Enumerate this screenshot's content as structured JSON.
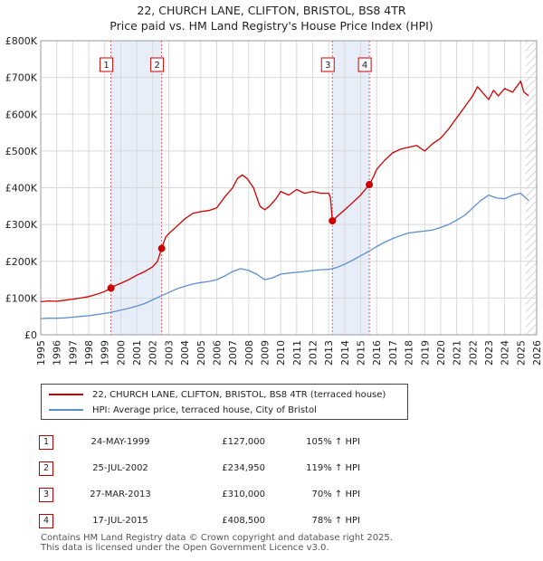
{
  "title_line1": "22, CHURCH LANE, CLIFTON, BRISTOL, BS8 4TR",
  "title_line2": "Price paid vs. HM Land Registry's House Price Index (HPI)",
  "colors": {
    "property": "#cc0000",
    "hpi": "#5b8fd0",
    "shade": "#e8eef9",
    "grid": "#d8d8d8",
    "marker_line": "#e06060"
  },
  "chart_data": {
    "type": "line",
    "title": "22, CHURCH LANE, CLIFTON, BRISTOL, BS8 4TR",
    "subtitle": "Price paid vs. HM Land Registry's House Price Index (HPI)",
    "xlim": [
      1995,
      2026
    ],
    "ylim": [
      0,
      800000
    ],
    "xticks": [
      1995,
      1996,
      1997,
      1998,
      1999,
      2000,
      2001,
      2002,
      2003,
      2004,
      2005,
      2006,
      2007,
      2008,
      2009,
      2010,
      2011,
      2012,
      2013,
      2014,
      2015,
      2016,
      2017,
      2018,
      2019,
      2020,
      2021,
      2022,
      2023,
      2024,
      2025,
      2026
    ],
    "yticks": [
      {
        "value": 0,
        "label": "£0"
      },
      {
        "value": 100000,
        "label": "£100K"
      },
      {
        "value": 200000,
        "label": "£200K"
      },
      {
        "value": 300000,
        "label": "£300K"
      },
      {
        "value": 400000,
        "label": "£400K"
      },
      {
        "value": 500000,
        "label": "£500K"
      },
      {
        "value": 600000,
        "label": "£600K"
      },
      {
        "value": 700000,
        "label": "£700K"
      },
      {
        "value": 800000,
        "label": "£800K"
      }
    ],
    "shaded_ranges": [
      [
        1999.4,
        2002.56
      ],
      [
        2013.23,
        2015.54
      ]
    ],
    "future_start": 2025.3,
    "sales": [
      {
        "label": "1",
        "x": 1999.39,
        "y": 127000
      },
      {
        "label": "2",
        "x": 2002.56,
        "y": 234950
      },
      {
        "label": "3",
        "x": 2013.23,
        "y": 310000
      },
      {
        "label": "4",
        "x": 2015.54,
        "y": 408500
      }
    ],
    "series": [
      {
        "name": "22, CHURCH LANE, CLIFTON, BRISTOL, BS8 4TR (terraced house)",
        "x": [
          1995,
          1995.5,
          1996,
          1996.5,
          1997,
          1997.5,
          1998,
          1998.5,
          1999,
          1999.39,
          1999.7,
          2000,
          2000.5,
          2001,
          2001.5,
          2002,
          2002.3,
          2002.56,
          2002.8,
          2003,
          2003.5,
          2004,
          2004.5,
          2005,
          2005.5,
          2006,
          2006.5,
          2007,
          2007.3,
          2007.6,
          2007.9,
          2008.3,
          2008.7,
          2009,
          2009.3,
          2009.7,
          2010,
          2010.5,
          2011,
          2011.5,
          2012,
          2012.5,
          2013,
          2013.1,
          2013.23,
          2013.6,
          2014,
          2014.5,
          2015,
          2015.54,
          2015.8,
          2016,
          2016.5,
          2017,
          2017.5,
          2018,
          2018.5,
          2019,
          2019.5,
          2020,
          2020.5,
          2021,
          2021.5,
          2022,
          2022.3,
          2022.6,
          2023,
          2023.3,
          2023.6,
          2024,
          2024.5,
          2025,
          2025.2,
          2025.5
        ],
        "y": [
          90000,
          92000,
          91000,
          94000,
          97000,
          100000,
          104000,
          110000,
          118000,
          127000,
          135000,
          140000,
          150000,
          162000,
          172000,
          185000,
          200000,
          234950,
          265000,
          275000,
          295000,
          315000,
          330000,
          335000,
          338000,
          345000,
          375000,
          400000,
          425000,
          435000,
          425000,
          400000,
          350000,
          340000,
          350000,
          370000,
          390000,
          380000,
          395000,
          385000,
          390000,
          385000,
          385000,
          375000,
          310000,
          325000,
          340000,
          360000,
          380000,
          408500,
          430000,
          450000,
          475000,
          495000,
          505000,
          510000,
          515000,
          500000,
          520000,
          535000,
          560000,
          590000,
          620000,
          650000,
          675000,
          660000,
          640000,
          665000,
          650000,
          670000,
          660000,
          690000,
          660000,
          650000
        ]
      },
      {
        "name": "HPI: Average price, terraced house, City of Bristol",
        "x": [
          1995,
          1995.5,
          1996,
          1996.5,
          1997,
          1997.5,
          1998,
          1998.5,
          1999,
          1999.5,
          2000,
          2000.5,
          2001,
          2001.5,
          2002,
          2002.5,
          2003,
          2003.5,
          2004,
          2004.5,
          2005,
          2005.5,
          2006,
          2006.5,
          2007,
          2007.5,
          2008,
          2008.5,
          2009,
          2009.5,
          2010,
          2010.5,
          2011,
          2011.5,
          2012,
          2012.5,
          2013,
          2013.5,
          2014,
          2014.5,
          2015,
          2015.5,
          2016,
          2016.5,
          2017,
          2017.5,
          2018,
          2018.5,
          2019,
          2019.5,
          2020,
          2020.5,
          2021,
          2021.5,
          2022,
          2022.5,
          2023,
          2023.5,
          2024,
          2024.5,
          2025,
          2025.5
        ],
        "y": [
          44000,
          45000,
          45000,
          46000,
          48000,
          50000,
          52000,
          55000,
          58000,
          62000,
          67000,
          72000,
          78000,
          85000,
          95000,
          105000,
          115000,
          125000,
          132000,
          138000,
          142000,
          145000,
          150000,
          160000,
          172000,
          180000,
          175000,
          165000,
          150000,
          155000,
          165000,
          168000,
          170000,
          172000,
          175000,
          177000,
          178000,
          183000,
          192000,
          203000,
          215000,
          227000,
          240000,
          252000,
          262000,
          270000,
          277000,
          280000,
          282000,
          285000,
          292000,
          300000,
          312000,
          325000,
          345000,
          365000,
          380000,
          372000,
          370000,
          380000,
          385000,
          365000
        ]
      }
    ]
  },
  "legend": {
    "property_label": "22, CHURCH LANE, CLIFTON, BRISTOL, BS8 4TR (terraced house)",
    "hpi_label": "HPI: Average price, terraced house, City of Bristol"
  },
  "sales_table": [
    {
      "num": "1",
      "date": "24-MAY-1999",
      "price": "£127,000",
      "hpi": "105% ↑ HPI"
    },
    {
      "num": "2",
      "date": "25-JUL-2002",
      "price": "£234,950",
      "hpi": "119% ↑ HPI"
    },
    {
      "num": "3",
      "date": "27-MAR-2013",
      "price": "£310,000",
      "hpi": "70% ↑ HPI"
    },
    {
      "num": "4",
      "date": "17-JUL-2015",
      "price": "£408,500",
      "hpi": "78% ↑ HPI"
    }
  ],
  "footer": {
    "line1": "Contains HM Land Registry data © Crown copyright and database right 2025.",
    "line2": "This data is licensed under the Open Government Licence v3.0."
  }
}
